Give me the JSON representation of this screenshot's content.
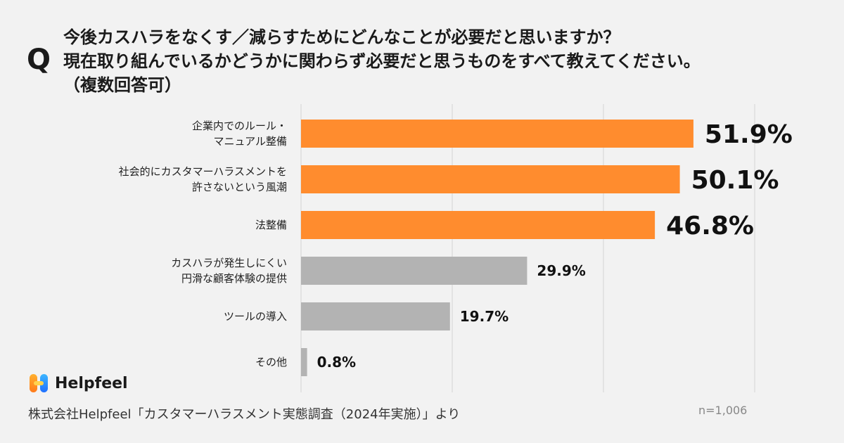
{
  "question": {
    "mark": "Q",
    "line1": "今後カスハラをなくす／減らすためにどんなことが必要だと思いますか？",
    "line2": "現在取り組んでいるかどうかに関わらず必要だと思うものをすべて教えてください。",
    "line3": "（複数回答可）"
  },
  "chart_data": {
    "type": "bar",
    "orientation": "horizontal",
    "categories": [
      [
        "企業内でのルール・",
        "マニュアル整備"
      ],
      [
        "社会的にカスタマーハラスメントを",
        "許さないという風潮"
      ],
      [
        "法整備"
      ],
      [
        "カスハラが発生しにくい",
        "円滑な顧客体験の提供"
      ],
      [
        "ツールの導入"
      ],
      [
        "その他"
      ]
    ],
    "values": [
      51.9,
      50.1,
      46.8,
      29.9,
      19.7,
      0.8
    ],
    "value_labels": [
      "51.9%",
      "50.1%",
      "46.8%",
      "29.9%",
      "19.7%",
      "0.8%"
    ],
    "highlight_count": 3,
    "colors": {
      "highlight": "#ff8c2e",
      "normal": "#b3b3b3",
      "grid": "#d4d4d4"
    },
    "xlim": [
      0,
      60
    ],
    "grid": true
  },
  "logo": {
    "text": "Helpfeel"
  },
  "source": "株式会社Helpfeel「カスタマーハラスメント実態調査（2024年実施）」より",
  "sample": "n=1,006"
}
